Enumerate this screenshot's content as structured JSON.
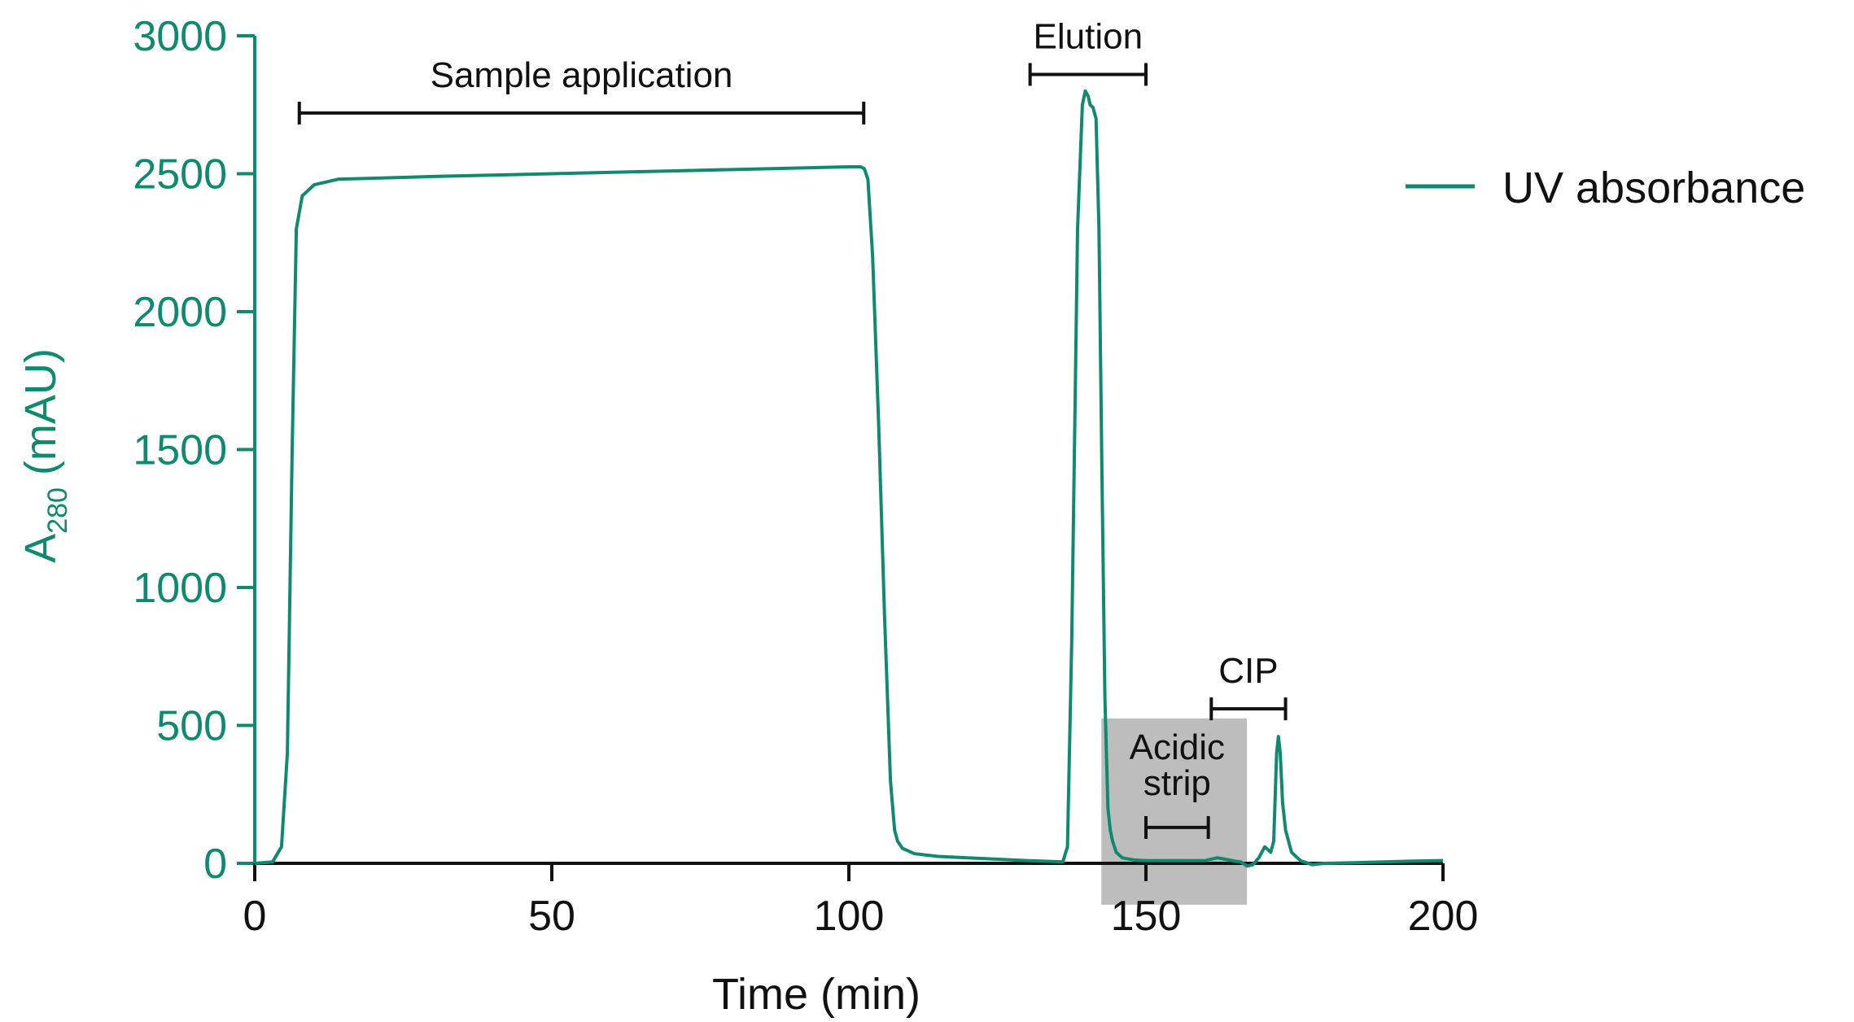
{
  "chart_data": {
    "type": "line",
    "title": "",
    "xlabel": "Time (min)",
    "ylabel": "A280 (mAU)",
    "ylabel_parts": {
      "main": "A",
      "sub": "280",
      "unit": " (mAU)"
    },
    "xlim": [
      0,
      200
    ],
    "ylim": [
      0,
      3000
    ],
    "x_ticks": [
      0,
      50,
      100,
      150,
      200
    ],
    "y_ticks": [
      0,
      500,
      1000,
      1500,
      2000,
      2500,
      3000
    ],
    "grid": false,
    "legend_position": "top-right",
    "colors": {
      "series": "#0f8a6f",
      "axis_y": "#0f8a6f",
      "axis_x": "#111111",
      "shade": "#bdbdbd",
      "bracket": "#111111"
    },
    "series": [
      {
        "name": "UV absorbance",
        "x": [
          0,
          3,
          4.5,
          5.5,
          6.3,
          7,
          8,
          10,
          14,
          30,
          50,
          70,
          90,
          100,
          102,
          102.6,
          103.2,
          104,
          105,
          106,
          107,
          107.7,
          108.2,
          109,
          111,
          115,
          120,
          130,
          136,
          136.8,
          137.5,
          138.5,
          139.3,
          139.8,
          140.3,
          140.6,
          141.1,
          141.6,
          142.1,
          142.6,
          143.1,
          143.6,
          144,
          144.4,
          145,
          146,
          148,
          150,
          155,
          160,
          162,
          164,
          165,
          166,
          167,
          168,
          169,
          170,
          171,
          171.5,
          172,
          172.3,
          172.6,
          173,
          173.5,
          174.5,
          176,
          178,
          180,
          185,
          190,
          195,
          200
        ],
        "y": [
          0,
          5,
          60,
          400,
          1500,
          2300,
          2420,
          2460,
          2480,
          2490,
          2500,
          2510,
          2520,
          2525,
          2525,
          2518,
          2480,
          2200,
          1600,
          900,
          300,
          120,
          80,
          55,
          35,
          25,
          20,
          10,
          5,
          60,
          800,
          2300,
          2750,
          2800,
          2780,
          2750,
          2740,
          2700,
          2300,
          1400,
          600,
          200,
          120,
          80,
          40,
          20,
          12,
          10,
          10,
          10,
          20,
          12,
          8,
          5,
          -10,
          -5,
          20,
          60,
          40,
          80,
          400,
          460,
          400,
          220,
          120,
          40,
          10,
          -5,
          0,
          2,
          5,
          8,
          10
        ]
      }
    ],
    "annotations": [
      {
        "label": "Sample application",
        "x_start": 7.5,
        "x_end": 102.5,
        "y": 2720
      },
      {
        "label": "Elution",
        "x_start": 130.5,
        "x_end": 150,
        "y": 2860
      },
      {
        "label": "CIP",
        "x_start": 161,
        "x_end": 173.5,
        "y": 560
      },
      {
        "label": "Acidic",
        "label2": "strip",
        "x_start": 150,
        "x_end": 160.5,
        "y": 130
      }
    ],
    "shaded_region": {
      "x_start": 142.5,
      "x_end": 167,
      "y_start": -150,
      "y_end": 525
    }
  }
}
